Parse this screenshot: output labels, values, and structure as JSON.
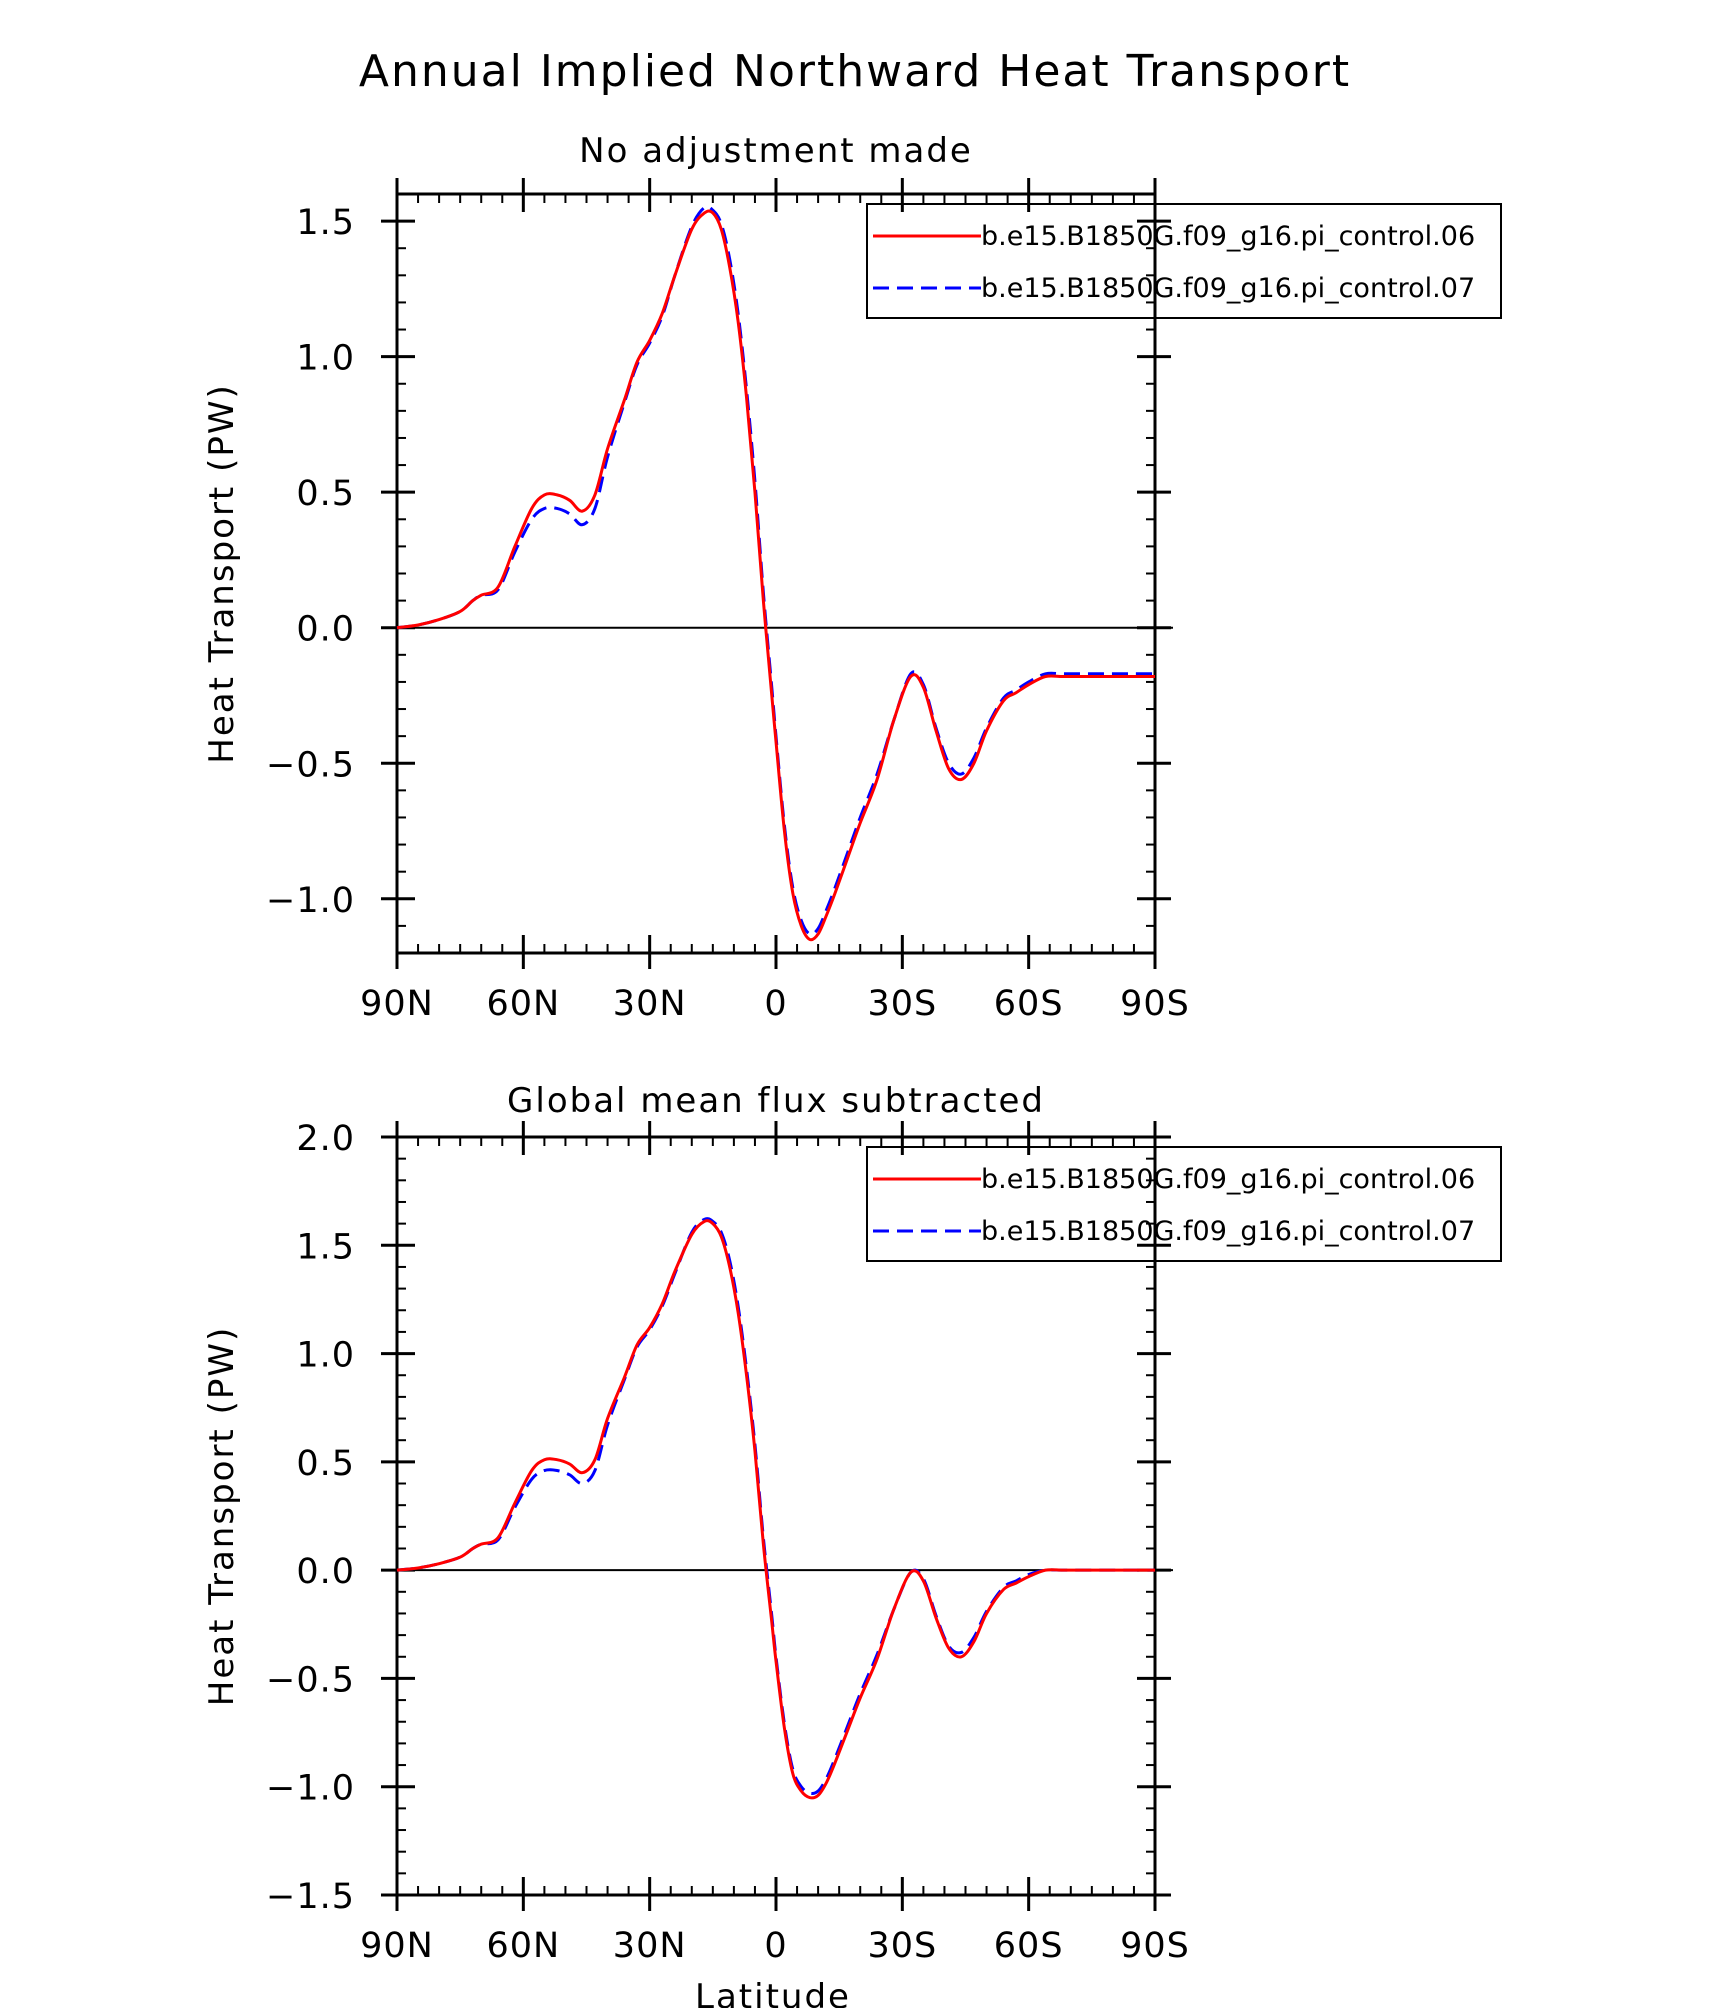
{
  "figure": {
    "title": "Annual Implied Northward Heat Transport",
    "xlabel": "Latitude"
  },
  "colors": {
    "series1": "#ff0000",
    "series2": "#0000ff",
    "axis": "#000000"
  },
  "chart_data": [
    {
      "type": "line",
      "title": "No adjustment made",
      "xlabel": "",
      "ylabel": "Heat Transport (PW)",
      "xlim": [
        90,
        -90
      ],
      "ylim": [
        -1.2,
        1.6
      ],
      "yticks": [
        1.5,
        1.0,
        0.5,
        0.0,
        -0.5,
        -1.0
      ],
      "ytick_labels": [
        "1.5",
        "1.0",
        "0.5",
        "0.0",
        "−0.5",
        "−1.0"
      ],
      "xticks": [
        90,
        60,
        30,
        0,
        -30,
        -60,
        -90
      ],
      "xtick_labels": [
        "90N",
        "60N",
        "30N",
        "0",
        "30S",
        "60S",
        "90S"
      ],
      "zero_line": true,
      "legend": {
        "position": "top-right"
      },
      "series": [
        {
          "name": "b.e15.B1850G.f09_g16.pi_control.06",
          "style": "solid",
          "color": "#ff0000",
          "x": [
            90,
            85,
            80,
            75,
            72,
            70,
            66,
            62,
            58,
            55,
            52,
            49,
            46,
            43,
            40,
            36,
            33,
            30,
            27,
            24,
            20,
            17,
            15,
            13,
            11,
            9,
            7,
            5,
            3,
            1,
            0,
            -2,
            -4,
            -6,
            -8,
            -10,
            -12,
            -14,
            -17,
            -20,
            -24,
            -28,
            -32,
            -35,
            -38,
            -41,
            -44,
            -47,
            -50,
            -54,
            -57,
            -60,
            -64,
            -68,
            -72,
            -76,
            -80,
            -85,
            -90
          ],
          "y": [
            0.0,
            0.01,
            0.03,
            0.06,
            0.1,
            0.12,
            0.15,
            0.3,
            0.44,
            0.49,
            0.49,
            0.47,
            0.43,
            0.49,
            0.66,
            0.84,
            0.98,
            1.06,
            1.16,
            1.3,
            1.47,
            1.53,
            1.53,
            1.47,
            1.33,
            1.13,
            0.85,
            0.5,
            0.1,
            -0.25,
            -0.42,
            -0.75,
            -0.98,
            -1.1,
            -1.15,
            -1.13,
            -1.06,
            -0.98,
            -0.85,
            -0.72,
            -0.56,
            -0.34,
            -0.18,
            -0.22,
            -0.38,
            -0.52,
            -0.56,
            -0.5,
            -0.38,
            -0.27,
            -0.24,
            -0.21,
            -0.18,
            -0.18,
            -0.18,
            -0.18,
            -0.18,
            -0.18,
            -0.18
          ]
        },
        {
          "name": "b.e15.B1850G.f09_g16.pi_control.07",
          "style": "dashed",
          "color": "#0000ff",
          "x": [
            90,
            85,
            80,
            75,
            72,
            70,
            66,
            62,
            58,
            55,
            52,
            49,
            46,
            43,
            40,
            36,
            33,
            30,
            27,
            24,
            20,
            17,
            15,
            13,
            11,
            9,
            7,
            5,
            3,
            1,
            0,
            -2,
            -4,
            -6,
            -8,
            -10,
            -12,
            -14,
            -17,
            -20,
            -24,
            -28,
            -32,
            -35,
            -38,
            -41,
            -44,
            -47,
            -50,
            -54,
            -57,
            -60,
            -64,
            -68,
            -72,
            -76,
            -80,
            -85,
            -90
          ],
          "y": [
            0.0,
            0.01,
            0.03,
            0.06,
            0.1,
            0.12,
            0.14,
            0.28,
            0.4,
            0.44,
            0.44,
            0.42,
            0.38,
            0.44,
            0.63,
            0.83,
            0.97,
            1.05,
            1.15,
            1.3,
            1.48,
            1.55,
            1.54,
            1.49,
            1.36,
            1.16,
            0.88,
            0.54,
            0.13,
            -0.22,
            -0.4,
            -0.73,
            -0.96,
            -1.08,
            -1.13,
            -1.11,
            -1.04,
            -0.96,
            -0.83,
            -0.7,
            -0.54,
            -0.34,
            -0.17,
            -0.21,
            -0.37,
            -0.5,
            -0.54,
            -0.48,
            -0.37,
            -0.26,
            -0.23,
            -0.2,
            -0.17,
            -0.17,
            -0.17,
            -0.17,
            -0.17,
            -0.17,
            -0.17
          ]
        }
      ]
    },
    {
      "type": "line",
      "title": "Global mean flux subtracted",
      "xlabel": "Latitude",
      "ylabel": "Heat Transport (PW)",
      "xlim": [
        90,
        -90
      ],
      "ylim": [
        -1.5,
        2.0
      ],
      "yticks": [
        2.0,
        1.5,
        1.0,
        0.5,
        0.0,
        -0.5,
        -1.0,
        -1.5
      ],
      "ytick_labels": [
        "2.0",
        "1.5",
        "1.0",
        "0.5",
        "0.0",
        "−0.5",
        "−1.0",
        "−1.5"
      ],
      "xticks": [
        90,
        60,
        30,
        0,
        -30,
        -60,
        -90
      ],
      "xtick_labels": [
        "90N",
        "60N",
        "30N",
        "0",
        "30S",
        "60S",
        "90S"
      ],
      "zero_line": true,
      "legend": {
        "position": "top-right"
      },
      "series": [
        {
          "name": "b.e15.B1850G.f09_g16.pi_control.06",
          "style": "solid",
          "color": "#ff0000",
          "x": [
            90,
            85,
            80,
            75,
            72,
            70,
            66,
            62,
            58,
            55,
            52,
            49,
            46,
            43,
            40,
            36,
            33,
            30,
            27,
            24,
            20,
            17,
            15,
            13,
            11,
            9,
            7,
            5,
            3,
            1,
            0,
            -2,
            -4,
            -6,
            -8,
            -10,
            -12,
            -14,
            -17,
            -20,
            -24,
            -28,
            -32,
            -35,
            -38,
            -41,
            -44,
            -47,
            -50,
            -54,
            -57,
            -60,
            -64,
            -68,
            -72,
            -76,
            -80,
            -85,
            -90
          ],
          "y": [
            0.0,
            0.01,
            0.03,
            0.06,
            0.1,
            0.12,
            0.15,
            0.31,
            0.46,
            0.51,
            0.51,
            0.49,
            0.45,
            0.51,
            0.7,
            0.89,
            1.04,
            1.12,
            1.23,
            1.38,
            1.55,
            1.61,
            1.6,
            1.54,
            1.4,
            1.19,
            0.9,
            0.55,
            0.12,
            -0.24,
            -0.42,
            -0.73,
            -0.94,
            -1.02,
            -1.05,
            -1.04,
            -0.98,
            -0.89,
            -0.74,
            -0.59,
            -0.41,
            -0.18,
            -0.01,
            -0.05,
            -0.22,
            -0.36,
            -0.4,
            -0.33,
            -0.2,
            -0.09,
            -0.06,
            -0.03,
            0.0,
            0.0,
            0.0,
            0.0,
            0.0,
            0.0,
            0.0
          ]
        },
        {
          "name": "b.e15.B1850G.f09_g16.pi_control.07",
          "style": "dashed",
          "color": "#0000ff",
          "x": [
            90,
            85,
            80,
            75,
            72,
            70,
            66,
            62,
            58,
            55,
            52,
            49,
            46,
            43,
            40,
            36,
            33,
            30,
            27,
            24,
            20,
            17,
            15,
            13,
            11,
            9,
            7,
            5,
            3,
            1,
            0,
            -2,
            -4,
            -6,
            -8,
            -10,
            -12,
            -14,
            -17,
            -20,
            -24,
            -28,
            -32,
            -35,
            -38,
            -41,
            -44,
            -47,
            -50,
            -54,
            -57,
            -60,
            -64,
            -68,
            -72,
            -76,
            -80,
            -85,
            -90
          ],
          "y": [
            0.0,
            0.01,
            0.03,
            0.06,
            0.1,
            0.12,
            0.14,
            0.29,
            0.42,
            0.46,
            0.46,
            0.44,
            0.4,
            0.46,
            0.67,
            0.88,
            1.03,
            1.11,
            1.22,
            1.37,
            1.56,
            1.62,
            1.61,
            1.56,
            1.43,
            1.22,
            0.93,
            0.58,
            0.15,
            -0.21,
            -0.4,
            -0.71,
            -0.92,
            -1.0,
            -1.03,
            -1.02,
            -0.96,
            -0.87,
            -0.72,
            -0.57,
            -0.39,
            -0.18,
            -0.01,
            -0.04,
            -0.21,
            -0.35,
            -0.38,
            -0.31,
            -0.19,
            -0.08,
            -0.05,
            -0.02,
            0.0,
            0.0,
            0.0,
            0.0,
            0.0,
            0.0,
            0.0
          ]
        }
      ]
    }
  ]
}
